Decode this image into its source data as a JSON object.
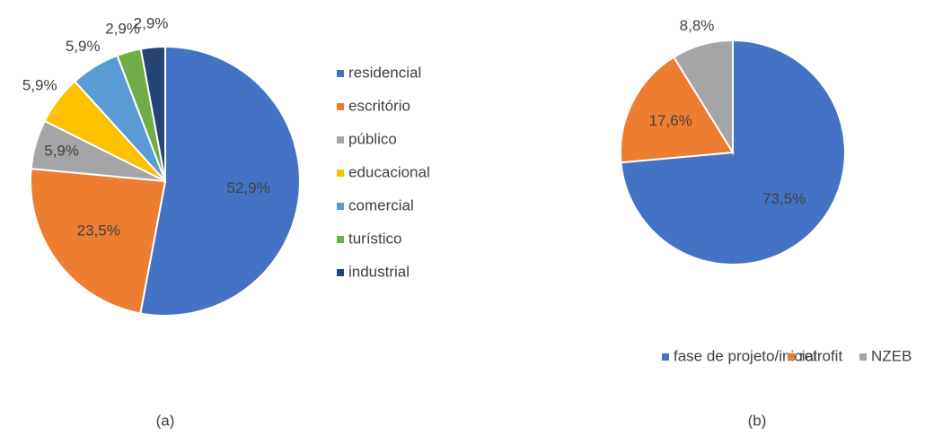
{
  "chart_data": [
    {
      "type": "pie",
      "caption": "(a)",
      "categories": [
        "residencial",
        "escritório",
        "público",
        "educacional",
        "comercial",
        "turístico",
        "industrial"
      ],
      "values": [
        52.9,
        23.5,
        5.9,
        5.9,
        5.9,
        2.9,
        2.9
      ],
      "value_labels": [
        "52,9%",
        "23,5%",
        "5,9%",
        "5,9%",
        "5,9%",
        "2,9%",
        "2,9%"
      ],
      "colors": [
        "#4472c4",
        "#ed7d31",
        "#a5a5a5",
        "#ffc000",
        "#5b9bd5",
        "#70ad47",
        "#264478"
      ],
      "legend": "right"
    },
    {
      "type": "pie",
      "caption": "(b)",
      "categories": [
        "fase de projeto/inicial",
        "retrofit",
        "NZEB"
      ],
      "values": [
        73.5,
        17.6,
        8.8
      ],
      "value_labels": [
        "73,5%",
        "17,6%",
        "8,8%"
      ],
      "colors": [
        "#4472c4",
        "#ed7d31",
        "#a5a5a5"
      ],
      "legend": "bottom"
    }
  ]
}
